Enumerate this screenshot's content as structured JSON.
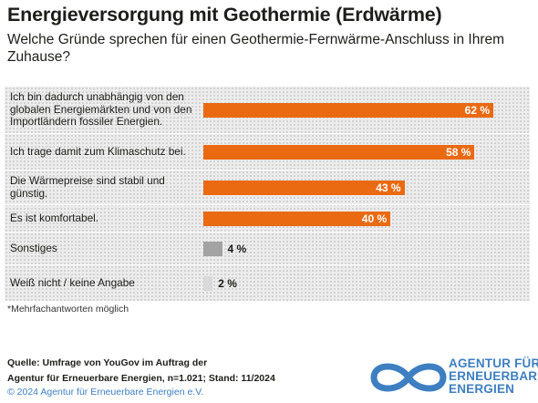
{
  "title": "Energieversorgung mit Geothermie (Erdwärme)",
  "subtitle": "Welche Gründe sprechen für einen Geothermie-Fernwärme-Anschluss in Ihrem Zuhause?",
  "chart_data": {
    "type": "bar",
    "orientation": "horizontal",
    "unit": "%",
    "categories": [
      "Ich bin dadurch unabhängig von den globalen Energiemärkten und von den Importländern fossiler Energien.",
      "Ich trage damit zum Klimaschutz bei.",
      "Die Wärmepreise sind stabil und günstig.",
      "Es ist komfortabel.",
      "Sonstiges",
      "Weiß nicht / keine Angabe"
    ],
    "values": [
      62,
      58,
      43,
      40,
      4,
      2
    ],
    "value_labels": [
      "62 %",
      "58 %",
      "43 %",
      "40 %",
      "4 %",
      "2 %"
    ],
    "colors": [
      "#ea6a12",
      "#ea6a12",
      "#ea6a12",
      "#ea6a12",
      "#a3a3a3",
      "#d9d9d9"
    ],
    "xlim": [
      0,
      100
    ],
    "grid": false,
    "legend": "none"
  },
  "footnote": "*Mehrfachantworten möglich",
  "source_line1": "Quelle: Umfrage von YouGov im Auftrag der",
  "source_line2": "Agentur für Erneuerbare Energien, n=1.021; Stand: 11/2024",
  "copyright": "© 2024 Agentur für Erneuerbare Energien e.V.",
  "logo": {
    "line1": "AGENTUR FÜR",
    "line2": "ERNEUERBARE",
    "line3": "ENERGIEN",
    "icon": "infinity-logo-icon",
    "color": "#3d7fc1"
  }
}
